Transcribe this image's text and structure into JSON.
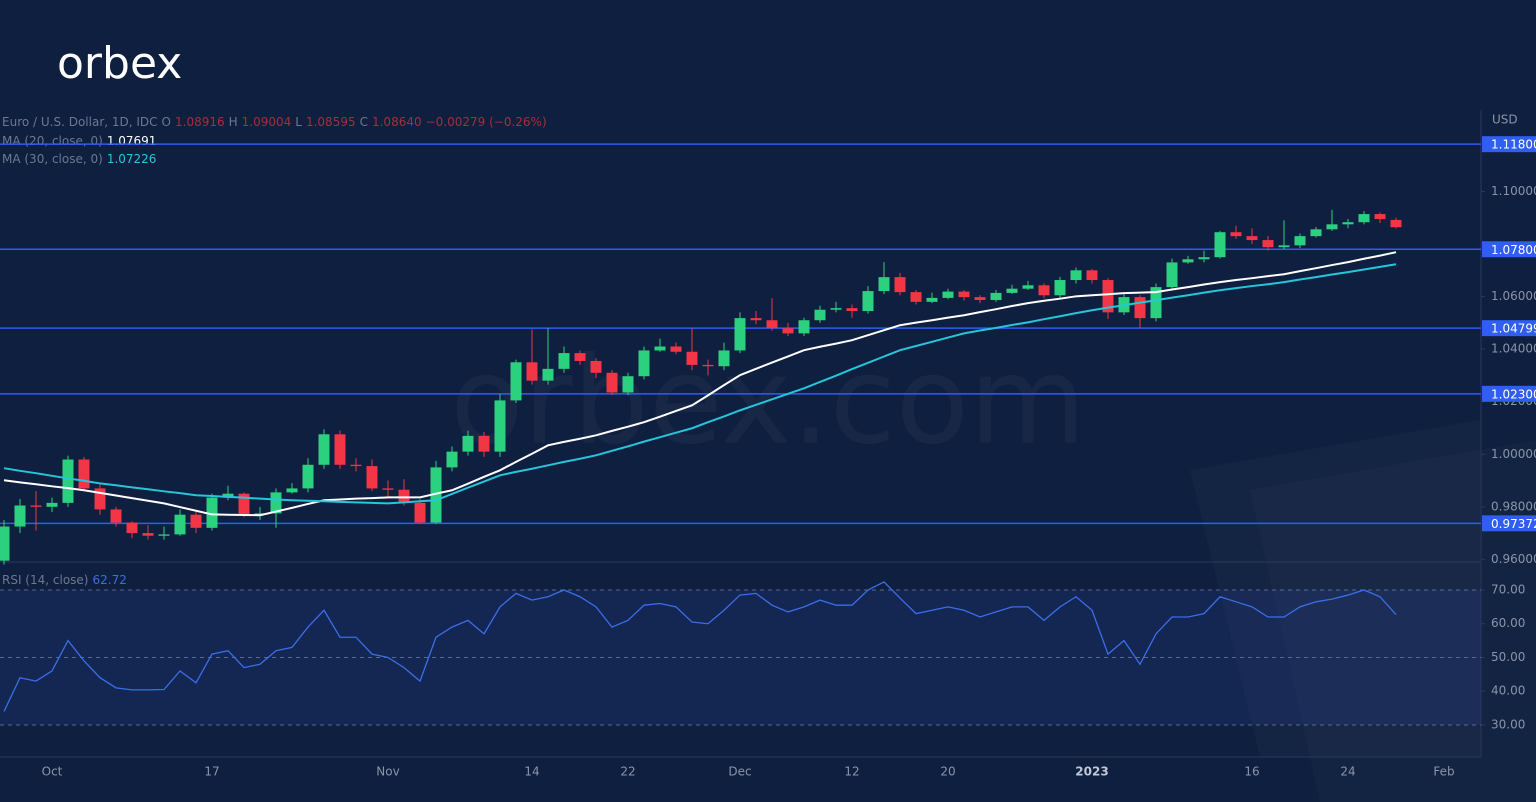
{
  "logo": "orbex",
  "watermark": "orbex.com",
  "chart_data": {
    "type": "candlestick",
    "currency": "USD",
    "legend": {
      "symbol": "Euro / U.S. Dollar, 1D, IDC",
      "ohlc": [
        "O",
        "1.08916",
        "H",
        "1.09004",
        "L",
        "1.08595",
        "C",
        "1.08640",
        "−0.00279 (−0.26%)"
      ]
    },
    "categories": [
      null,
      null,
      null,
      "Oct",
      null,
      null,
      null,
      null,
      null,
      null,
      null,
      null,
      null,
      "17",
      null,
      null,
      null,
      null,
      null,
      null,
      null,
      null,
      null,
      null,
      "Nov",
      null,
      null,
      null,
      null,
      null,
      null,
      null,
      null,
      "14",
      null,
      null,
      null,
      null,
      null,
      "22",
      null,
      null,
      null,
      null,
      null,
      null,
      "Dec",
      null,
      null,
      null,
      null,
      null,
      null,
      "12",
      null,
      null,
      null,
      null,
      null,
      "20",
      null,
      null,
      null,
      null,
      null,
      null,
      null,
      null,
      "2023",
      null,
      null,
      null,
      null,
      null,
      null,
      null,
      null,
      null,
      "16",
      null,
      null,
      null,
      null,
      null,
      "24",
      null,
      null,
      null,
      null,
      null,
      "Feb"
    ],
    "open": [
      0.9595,
      0.9725,
      0.9805,
      0.98,
      0.9815,
      0.998,
      0.987,
      0.979,
      0.974,
      0.97,
      0.969,
      0.9695,
      0.977,
      0.972,
      0.9835,
      0.985,
      0.977,
      0.9775,
      0.9855,
      0.987,
      0.996,
      1.0076,
      0.996,
      0.9955,
      0.987,
      0.9865,
      0.9815,
      0.974,
      0.995,
      1.001,
      1.007,
      1.001,
      1.0205,
      1.035,
      1.028,
      1.0325,
      1.0385,
      1.0355,
      1.031,
      1.0235,
      1.0297,
      1.0395,
      1.041,
      1.039,
      1.034,
      1.0335,
      1.0395,
      1.0518,
      1.051,
      1.048,
      1.046,
      1.051,
      1.055,
      1.0556,
      1.0545,
      1.0621,
      1.0674,
      1.0617,
      1.058,
      1.0595,
      1.0619,
      1.0598,
      1.0587,
      1.0614,
      1.063,
      1.0643,
      1.0605,
      1.0663,
      1.07,
      1.0663,
      1.054,
      1.0598,
      1.0518,
      1.0636,
      1.073,
      1.0742,
      1.075,
      1.0845,
      1.083,
      1.0815,
      1.0788,
      1.0795,
      1.083,
      1.0856,
      1.0875,
      1.0883,
      1.0914,
      1.08916,
      null,
      null,
      null
    ],
    "high": [
      0.975,
      0.983,
      0.986,
      0.9835,
      0.9995,
      0.999,
      0.9885,
      0.98,
      0.9745,
      0.973,
      0.9725,
      0.979,
      0.978,
      0.985,
      0.988,
      0.9855,
      0.98,
      0.987,
      0.989,
      0.9985,
      1.0095,
      1.009,
      0.9985,
      0.998,
      0.99,
      0.9905,
      0.983,
      0.9975,
      1.003,
      1.009,
      1.0085,
      1.023,
      1.036,
      1.0475,
      1.048,
      1.041,
      1.0395,
      1.0365,
      1.032,
      1.031,
      1.041,
      1.044,
      1.0425,
      1.048,
      1.036,
      1.0425,
      1.054,
      1.0545,
      1.0594,
      1.05,
      1.052,
      1.0565,
      1.058,
      1.057,
      1.064,
      1.0731,
      1.069,
      1.0625,
      1.0615,
      1.063,
      1.0625,
      1.0605,
      1.0625,
      1.0645,
      1.066,
      1.065,
      1.0675,
      1.071,
      1.0705,
      1.067,
      1.061,
      1.0605,
      1.065,
      1.0745,
      1.0755,
      1.0775,
      1.085,
      1.087,
      1.086,
      1.083,
      1.089,
      1.084,
      1.0865,
      1.093,
      1.0895,
      1.0925,
      1.092,
      1.09004,
      null,
      null,
      null
    ],
    "low": [
      0.958,
      0.97,
      0.971,
      0.978,
      0.98,
      0.986,
      0.977,
      0.9725,
      0.968,
      0.9675,
      0.9675,
      0.969,
      0.97,
      0.971,
      0.9825,
      0.976,
      0.975,
      0.972,
      0.985,
      0.9855,
      0.9945,
      0.9945,
      0.9935,
      0.986,
      0.984,
      0.9805,
      0.9735,
      0.9735,
      0.9935,
      0.9995,
      0.999,
      0.999,
      1.0195,
      1.0265,
      1.0265,
      1.031,
      1.034,
      1.029,
      1.0225,
      1.0225,
      1.0285,
      1.039,
      1.038,
      1.032,
      1.03,
      1.032,
      1.0385,
      1.0495,
      1.047,
      1.045,
      1.045,
      1.05,
      1.054,
      1.052,
      1.0535,
      1.061,
      1.0605,
      1.057,
      1.0575,
      1.059,
      1.0585,
      1.0575,
      1.058,
      1.061,
      1.0625,
      1.0595,
      1.0595,
      1.065,
      1.065,
      1.0515,
      1.053,
      1.048,
      1.0505,
      1.063,
      1.0725,
      1.073,
      1.0745,
      1.082,
      1.08,
      1.0775,
      1.078,
      1.0785,
      1.0825,
      1.085,
      1.086,
      1.0875,
      1.088,
      1.08595,
      null,
      null,
      null
    ],
    "close": [
      0.9725,
      0.9805,
      0.98,
      0.9815,
      0.998,
      0.987,
      0.979,
      0.974,
      0.97,
      0.969,
      0.9695,
      0.977,
      0.972,
      0.9835,
      0.985,
      0.977,
      0.9775,
      0.9855,
      0.987,
      0.996,
      1.0076,
      0.996,
      0.9955,
      0.987,
      0.9865,
      0.9815,
      0.974,
      0.995,
      1.001,
      1.007,
      1.001,
      1.0205,
      1.035,
      1.028,
      1.0325,
      1.0385,
      1.0355,
      1.031,
      1.0235,
      1.0297,
      1.0395,
      1.041,
      1.039,
      1.034,
      1.0335,
      1.0395,
      1.0518,
      1.051,
      1.048,
      1.046,
      1.051,
      1.055,
      1.0556,
      1.0545,
      1.0621,
      1.0674,
      1.0617,
      1.058,
      1.0595,
      1.0619,
      1.0598,
      1.0587,
      1.0614,
      1.063,
      1.0643,
      1.0605,
      1.0663,
      1.07,
      1.0663,
      1.054,
      1.0598,
      1.0518,
      1.0636,
      1.073,
      1.0742,
      1.075,
      1.0845,
      1.083,
      1.0815,
      1.0788,
      1.0795,
      1.083,
      1.0856,
      1.0875,
      1.0883,
      1.0914,
      1.0895,
      1.0864,
      null,
      null,
      null
    ],
    "up_color": "#2bd17e",
    "down_color": "#f23645",
    "series": [
      {
        "name": "MA (20, close, 0)",
        "color": "#ffffff",
        "legend_value": "1.07691",
        "values": [
          0.9901,
          0.9893,
          0.9886,
          0.9878,
          0.9871,
          0.9863,
          0.9853,
          0.9843,
          0.9833,
          0.9823,
          0.9813,
          0.9799,
          0.9785,
          0.9771,
          0.977,
          0.9769,
          0.9768,
          0.9782,
          0.9796,
          0.9811,
          0.9825,
          0.9828,
          0.9831,
          0.9833,
          0.9836,
          0.9836,
          0.9836,
          0.985,
          0.9863,
          0.9888,
          0.9914,
          0.9939,
          0.9971,
          1.0002,
          1.0034,
          1.0047,
          1.0059,
          1.0072,
          1.0089,
          1.0105,
          1.0122,
          1.0143,
          1.0165,
          1.0186,
          1.0224,
          1.0263,
          1.0301,
          1.0325,
          1.0349,
          1.0372,
          1.0396,
          1.0409,
          1.0421,
          1.0434,
          1.0453,
          1.0472,
          1.0491,
          1.0501,
          1.051,
          1.052,
          1.0529,
          1.0541,
          1.0552,
          1.0564,
          1.0575,
          1.0584,
          1.0592,
          1.0601,
          1.0605,
          1.0609,
          1.0613,
          1.0615,
          1.0617,
          1.0627,
          1.0636,
          1.0646,
          1.0655,
          1.0663,
          1.067,
          1.0678,
          1.0685,
          1.0697,
          1.0708,
          1.072,
          1.0731,
          1.0744,
          1.0756,
          1.0769,
          null,
          null,
          null
        ]
      },
      {
        "name": "MA (30, close, 0)",
        "color": "#26c6da",
        "legend_value": "1.07226",
        "values": [
          0.9947,
          0.9937,
          0.9928,
          0.9918,
          0.9908,
          0.9899,
          0.9889,
          0.9882,
          0.9874,
          0.9867,
          0.9859,
          0.9852,
          0.9844,
          0.9841,
          0.9838,
          0.9835,
          0.9831,
          0.9828,
          0.9825,
          0.9823,
          0.9821,
          0.9819,
          0.9817,
          0.9815,
          0.9813,
          0.9817,
          0.9821,
          0.9825,
          0.9849,
          0.9873,
          0.9896,
          0.992,
          0.9933,
          0.9945,
          0.9958,
          0.9971,
          0.9983,
          0.9996,
          1.0013,
          1.003,
          1.0048,
          1.0065,
          1.0082,
          1.0099,
          1.0122,
          1.0144,
          1.0167,
          1.0188,
          1.0209,
          1.023,
          1.0251,
          1.0275,
          1.0299,
          1.0324,
          1.0348,
          1.0372,
          1.0396,
          1.0412,
          1.0428,
          1.0444,
          1.046,
          1.0471,
          1.0481,
          1.0492,
          1.0502,
          1.0514,
          1.0525,
          1.0537,
          1.0548,
          1.0558,
          1.0567,
          1.0577,
          1.0586,
          1.0596,
          1.0605,
          1.0615,
          1.0624,
          1.0632,
          1.064,
          1.0647,
          1.0655,
          1.0665,
          1.0674,
          1.0684,
          1.0693,
          1.0703,
          1.0713,
          1.0723,
          null,
          null,
          null
        ]
      }
    ],
    "ylim": [
      0.959,
      1.131
    ],
    "yticks": [
      {
        "value": 0.96,
        "label": "0.96000"
      },
      {
        "value": 0.98,
        "label": "0.98000"
      },
      {
        "value": 1.0,
        "label": "1.00000"
      },
      {
        "value": 1.02,
        "label": "1.02000"
      },
      {
        "value": 1.04,
        "label": "1.04000"
      },
      {
        "value": 1.06,
        "label": "1.06000"
      },
      {
        "value": 1.1,
        "label": "1.10000"
      }
    ],
    "levels": [
      {
        "value": 1.118,
        "label": "1.11800"
      },
      {
        "value": 1.078,
        "label": "1.07800"
      },
      {
        "value": 1.04799,
        "label": "1.04799"
      },
      {
        "value": 1.023,
        "label": "1.02300"
      },
      {
        "value": 0.97372,
        "label": "0.97372"
      }
    ],
    "level_color": "#2f5ef0",
    "rsi": {
      "name": "RSI (14, close)",
      "color": "#3a6ee8",
      "legend_value": "62.72",
      "values": [
        34,
        44,
        43,
        46,
        55,
        49,
        44,
        41,
        40.4,
        40.4,
        40.5,
        46,
        42.5,
        51,
        52,
        47,
        48,
        52,
        53,
        59,
        64,
        56,
        56,
        51,
        50,
        47,
        43,
        56,
        59,
        61,
        57,
        65,
        69,
        67,
        68,
        70,
        68,
        65,
        59,
        61,
        65.5,
        66,
        65,
        60.5,
        60,
        64,
        68.5,
        69,
        65.5,
        63.5,
        65,
        67,
        65.5,
        65.5,
        70,
        72.4,
        67.6,
        63,
        64,
        65,
        64,
        62,
        63.5,
        65,
        65,
        61,
        65,
        68,
        64,
        51,
        55,
        48,
        57,
        62,
        62,
        63,
        68,
        66.5,
        65,
        62,
        62,
        65,
        66.5,
        67.3,
        68.5,
        70,
        68,
        62.72,
        null,
        null,
        null
      ],
      "ylim": [
        20.5,
        78.3
      ],
      "yticks": [
        {
          "value": 30,
          "label": "30.00"
        },
        {
          "value": 40,
          "label": "40.00"
        },
        {
          "value": 50,
          "label": "50.00"
        },
        {
          "value": 60,
          "label": "60.00"
        },
        {
          "value": 70,
          "label": "70.00"
        }
      ],
      "levels": [
        30,
        50,
        70
      ]
    }
  }
}
